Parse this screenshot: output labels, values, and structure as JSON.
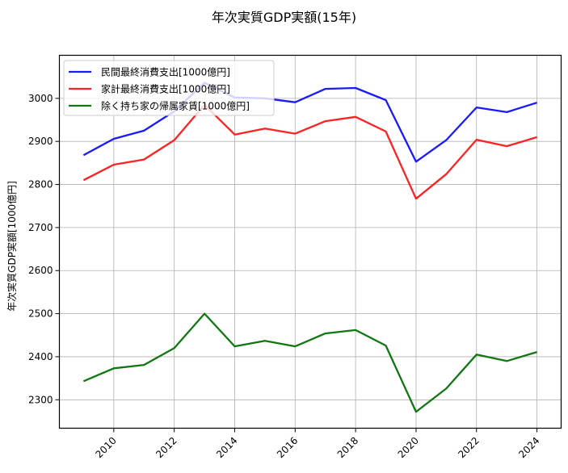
{
  "chart_data": {
    "type": "line",
    "title": "年次実質GDP実額(15年)",
    "xlabel": "",
    "ylabel": "年次実質GDP実額[1000億円]",
    "x": [
      2009,
      2010,
      2011,
      2012,
      2013,
      2014,
      2015,
      2016,
      2017,
      2018,
      2019,
      2020,
      2021,
      2022,
      2023,
      2024
    ],
    "xticks": [
      2010,
      2012,
      2014,
      2016,
      2018,
      2020,
      2022,
      2024
    ],
    "yticks": [
      2300,
      2400,
      2500,
      2600,
      2700,
      2800,
      2900,
      3000
    ],
    "xlim": [
      2008.2,
      2024.8
    ],
    "ylim": [
      2234,
      3100
    ],
    "grid": true,
    "legend_position": "upper left",
    "series": [
      {
        "name": "民間最終消費支出[1000億円]",
        "color": "#1a1aff",
        "values": [
          2868,
          2906,
          2925,
          2970,
          3036,
          3002,
          3000,
          2991,
          3022,
          3024,
          2996,
          2853,
          2903,
          2979,
          2968,
          2990
        ]
      },
      {
        "name": "家計最終消費支出[1000億円]",
        "color": "#ff2222",
        "values": [
          2810,
          2846,
          2858,
          2903,
          2985,
          2916,
          2930,
          2918,
          2947,
          2957,
          2923,
          2767,
          2824,
          2904,
          2889,
          2910
        ]
      },
      {
        "name": "除く持ち家の帰属家賃[1000億円]",
        "color": "#117711",
        "values": [
          2343,
          2373,
          2381,
          2420,
          2500,
          2424,
          2437,
          2424,
          2454,
          2462,
          2426,
          2272,
          2326,
          2405,
          2390,
          2411
        ]
      }
    ]
  }
}
